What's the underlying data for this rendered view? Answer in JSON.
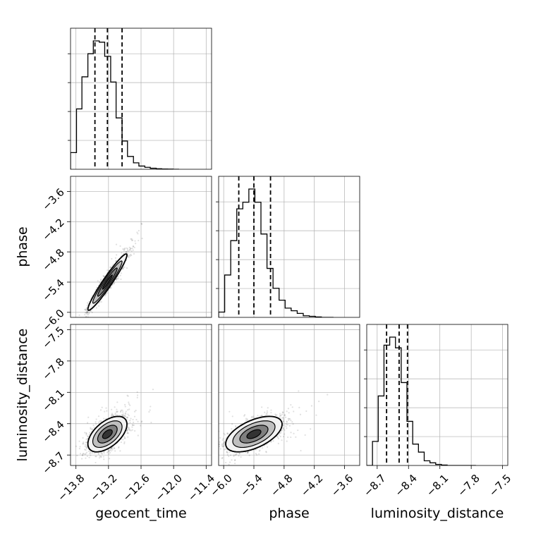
{
  "chart_data": {
    "type": "corner",
    "parameters": [
      "geocent_time",
      "phase",
      "luminosity_distance"
    ],
    "axes": {
      "geocent_time": {
        "range": [
          -13.9,
          -11.3
        ],
        "ticks": [
          -13.8,
          -13.2,
          -12.6,
          -12.0,
          -11.4
        ],
        "tick_labels": [
          "−13.8",
          "−13.2",
          "−12.6",
          "−12.0",
          "−11.4"
        ]
      },
      "phase": {
        "range": [
          -6.1,
          -3.3
        ],
        "ticks": [
          -6.0,
          -5.4,
          -4.8,
          -4.2,
          -3.6
        ],
        "tick_labels": [
          "−6.0",
          "−5.4",
          "−4.8",
          "−4.2",
          "−3.6"
        ]
      },
      "luminosity_distance": {
        "range": [
          -8.8,
          -7.45
        ],
        "ticks": [
          -8.7,
          -8.4,
          -8.1,
          -7.8,
          -7.5
        ],
        "tick_labels": [
          "−8.7",
          "−8.4",
          "−8.1",
          "−7.8",
          "−7.5"
        ]
      }
    },
    "grid": true,
    "histograms": [
      {
        "parameter": "geocent_time",
        "quantiles": [
          -13.45,
          -13.22,
          -12.95
        ],
        "bin_edges": [
          -13.9,
          -13.79,
          -13.69,
          -13.58,
          -13.48,
          -13.37,
          -13.27,
          -13.16,
          -13.06,
          -12.95,
          -12.85,
          -12.74,
          -12.64,
          -12.53,
          -12.43,
          -12.32,
          -12.22,
          -12.11,
          -12.01,
          -11.9
        ],
        "counts": [
          0.13,
          0.47,
          0.72,
          0.9,
          1.0,
          0.99,
          0.88,
          0.68,
          0.4,
          0.22,
          0.1,
          0.05,
          0.025,
          0.015,
          0.008,
          0.004,
          0.002,
          0.001,
          0.0
        ]
      },
      {
        "parameter": "phase",
        "quantiles": [
          -5.7,
          -5.4,
          -5.07
        ],
        "bin_edges": [
          -6.1,
          -5.98,
          -5.86,
          -5.74,
          -5.62,
          -5.5,
          -5.38,
          -5.26,
          -5.14,
          -5.02,
          -4.9,
          -4.78,
          -4.66,
          -4.54,
          -4.42,
          -4.3,
          -4.18,
          -4.06,
          -3.94,
          -3.82
        ],
        "counts": [
          0.04,
          0.32,
          0.58,
          0.82,
          0.87,
          0.97,
          0.87,
          0.63,
          0.37,
          0.22,
          0.13,
          0.07,
          0.05,
          0.03,
          0.012,
          0.008,
          0.003,
          0.0,
          0.0
        ]
      },
      {
        "parameter": "luminosity_distance",
        "quantiles": [
          -8.61,
          -8.49,
          -8.41
        ],
        "bin_edges": [
          -8.8,
          -8.745,
          -8.69,
          -8.635,
          -8.58,
          -8.525,
          -8.47,
          -8.415,
          -8.36,
          -8.305,
          -8.25,
          -8.195,
          -8.14,
          -8.085,
          -8.03,
          -7.975,
          -7.92,
          -7.865,
          -7.81,
          -7.755
        ],
        "counts": [
          0.0,
          0.18,
          0.52,
          0.9,
          0.96,
          0.88,
          0.62,
          0.33,
          0.16,
          0.1,
          0.035,
          0.02,
          0.008,
          0.003,
          0.0,
          0.0,
          0.0,
          0.0,
          0.0
        ]
      }
    ],
    "pairs": [
      {
        "x": "geocent_time",
        "y": "phase",
        "center": [
          -13.22,
          -5.4
        ],
        "sigma": [
          0.18,
          0.28
        ],
        "correlation": 0.96,
        "contour_levels": [
          0.5,
          1.0,
          1.5,
          2.0
        ]
      },
      {
        "x": "geocent_time",
        "y": "luminosity_distance",
        "center": [
          -13.22,
          -8.5
        ],
        "sigma": [
          0.18,
          0.085
        ],
        "correlation": 0.55,
        "contour_levels": [
          0.5,
          1.0,
          1.5,
          2.0
        ]
      },
      {
        "x": "phase",
        "y": "luminosity_distance",
        "center": [
          -5.4,
          -8.5
        ],
        "sigma": [
          0.28,
          0.085
        ],
        "correlation": 0.55,
        "contour_levels": [
          0.5,
          1.0,
          1.5,
          2.0
        ]
      }
    ],
    "colors": {
      "hist": "#000000",
      "quantile": "#000000",
      "grid": "#b0b0b0",
      "scatter": "#000000",
      "contour_fill": [
        "#f2f2f2",
        "#bfbfbf",
        "#7f7f7f",
        "#333333"
      ]
    }
  }
}
